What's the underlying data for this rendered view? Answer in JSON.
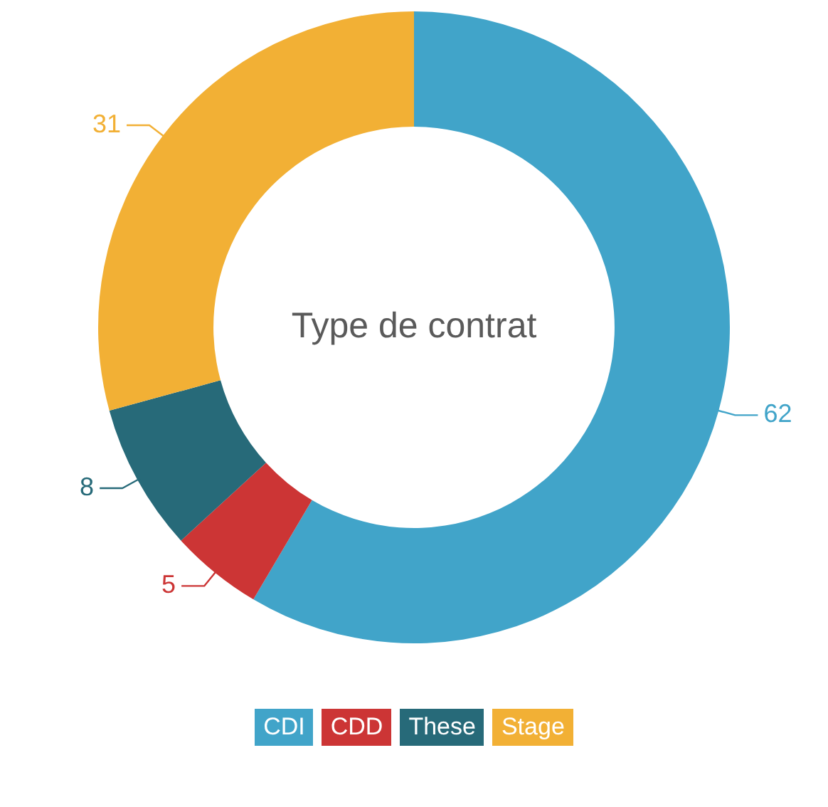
{
  "chart_data": {
    "type": "donut",
    "title": "Type de contrat",
    "categories": [
      "CDI",
      "CDD",
      "These",
      "Stage"
    ],
    "values": [
      62,
      5,
      8,
      31
    ],
    "colors": [
      "#41a4c9",
      "#cc3535",
      "#276a79",
      "#f2b035"
    ],
    "data_labels": true,
    "legend": "bottom"
  }
}
